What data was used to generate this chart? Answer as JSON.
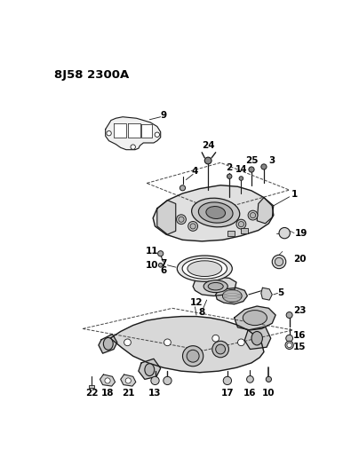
{
  "title": "8J58 2300A",
  "bg_color": "#ffffff",
  "lc": "#1a1a1a",
  "fig_width": 4.04,
  "fig_height": 5.33,
  "dpi": 100
}
